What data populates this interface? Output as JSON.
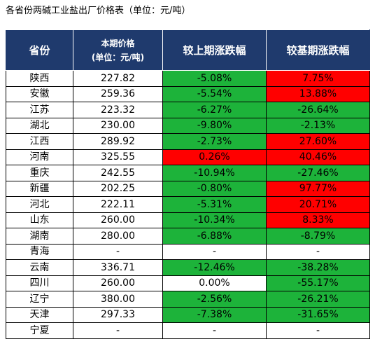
{
  "title": "各省份两碱工业盐出厂价格表（单位：元/吨）",
  "colors": {
    "header_bg": "#1f3a6d",
    "header_text": "#ffffff",
    "increase": "#ff0000",
    "decrease": "#1db33a"
  },
  "headers": {
    "province": "省份",
    "price_line1": "本期价格",
    "price_line2": "(单位：元/吨)",
    "mom": "较上期涨跌幅",
    "base": "较基期涨跌幅"
  },
  "rows": [
    {
      "province": "陕西",
      "price": "227.82",
      "mom": "-5.08%",
      "base": "7.75%"
    },
    {
      "province": "安徽",
      "price": "259.36",
      "mom": "-5.54%",
      "base": "13.88%"
    },
    {
      "province": "江苏",
      "price": "223.32",
      "mom": "-6.27%",
      "base": "-26.64%"
    },
    {
      "province": "湖北",
      "price": "230.00",
      "mom": "-9.80%",
      "base": "-2.13%"
    },
    {
      "province": "江西",
      "price": "289.92",
      "mom": "-2.73%",
      "base": "27.60%"
    },
    {
      "province": "河南",
      "price": "325.55",
      "mom": "0.26%",
      "base": "40.46%"
    },
    {
      "province": "重庆",
      "price": "242.55",
      "mom": "-10.94%",
      "base": "-27.46%"
    },
    {
      "province": "新疆",
      "price": "202.25",
      "mom": "-0.80%",
      "base": "97.77%"
    },
    {
      "province": "河北",
      "price": "222.11",
      "mom": "-5.31%",
      "base": "20.71%"
    },
    {
      "province": "山东",
      "price": "260.00",
      "mom": "-10.34%",
      "base": "8.33%"
    },
    {
      "province": "湖南",
      "price": "280.00",
      "mom": "-6.88%",
      "base": "-8.79%"
    },
    {
      "province": "青海",
      "price": "-",
      "mom": "-",
      "base": "-"
    },
    {
      "province": "云南",
      "price": "336.71",
      "mom": "-12.46%",
      "base": "-38.28%"
    },
    {
      "province": "四川",
      "price": "260.00",
      "mom": "0.00%",
      "base": "-55.17%"
    },
    {
      "province": "辽宁",
      "price": "380.00",
      "mom": "-2.56%",
      "base": "-26.21%"
    },
    {
      "province": "天津",
      "price": "297.33",
      "mom": "-7.38%",
      "base": "-31.65%"
    },
    {
      "province": "宁夏",
      "price": "-",
      "mom": "-",
      "base": "-"
    }
  ]
}
